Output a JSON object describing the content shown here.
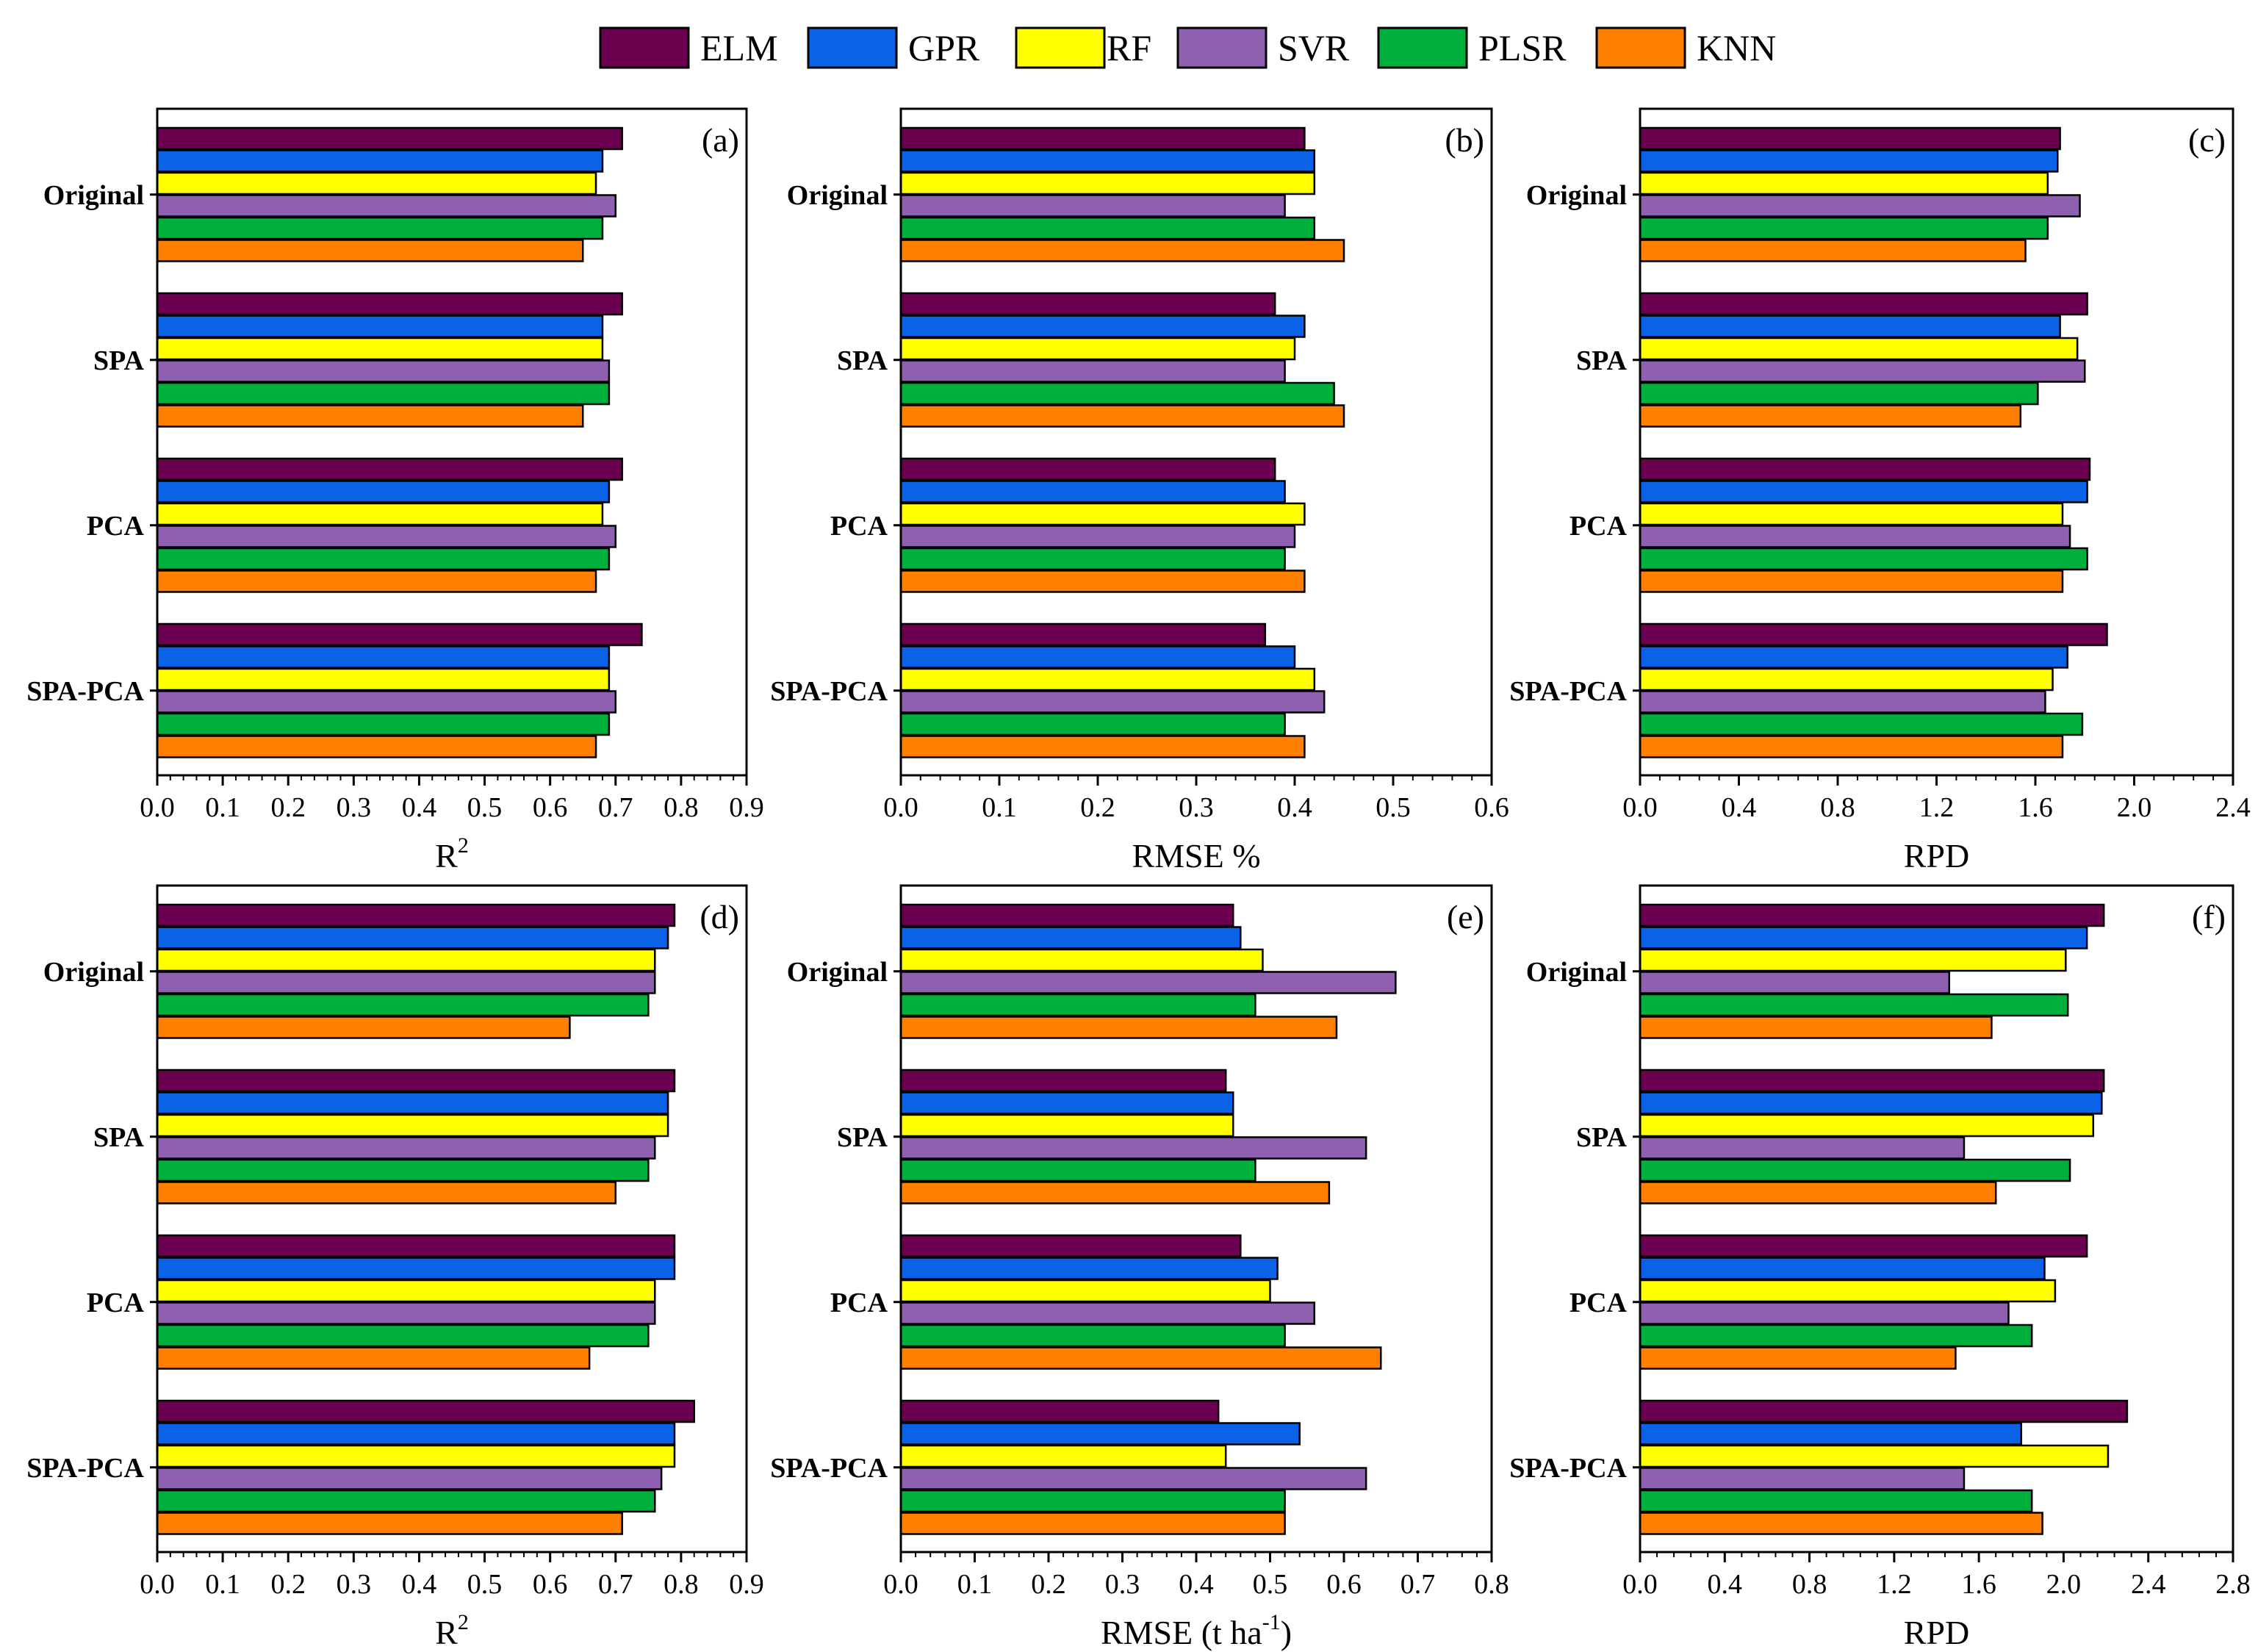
{
  "legend": [
    {
      "name": "ELM",
      "color": "#6B0050"
    },
    {
      "name": "GPR",
      "color": "#0A62E6"
    },
    {
      "name": "RF",
      "color": "#FFFF00"
    },
    {
      "name": "SVR",
      "color": "#9060B0"
    },
    {
      "name": "PLSR",
      "color": "#00B03C"
    },
    {
      "name": "KNN",
      "color": "#FF8000"
    }
  ],
  "chart_data": [
    {
      "type": "bar",
      "orientation": "horizontal",
      "panel": "(a)",
      "categories": [
        "Original",
        "SPA",
        "PCA",
        "SPA-PCA"
      ],
      "xlabel_main": "R",
      "xlabel_sup": "2",
      "xlabel_tail": "",
      "xlim": [
        0,
        0.9
      ],
      "ticks": [
        "0.0",
        "0.1",
        "0.2",
        "0.3",
        "0.4",
        "0.5",
        "0.6",
        "0.7",
        "0.8",
        "0.9"
      ],
      "series": [
        {
          "name": "ELM",
          "values": [
            0.71,
            0.71,
            0.71,
            0.74
          ]
        },
        {
          "name": "GPR",
          "values": [
            0.68,
            0.68,
            0.69,
            0.69
          ]
        },
        {
          "name": "RF",
          "values": [
            0.67,
            0.68,
            0.68,
            0.69
          ]
        },
        {
          "name": "SVR",
          "values": [
            0.7,
            0.69,
            0.7,
            0.7
          ]
        },
        {
          "name": "PLSR",
          "values": [
            0.68,
            0.69,
            0.69,
            0.69
          ]
        },
        {
          "name": "KNN",
          "values": [
            0.65,
            0.65,
            0.67,
            0.67
          ]
        }
      ]
    },
    {
      "type": "bar",
      "orientation": "horizontal",
      "panel": "(b)",
      "categories": [
        "Original",
        "SPA",
        "PCA",
        "SPA-PCA"
      ],
      "xlabel_main": "RMSE %",
      "xlabel_sup": "",
      "xlabel_tail": "",
      "xlim": [
        0,
        0.6
      ],
      "ticks": [
        "0.0",
        "0.1",
        "0.2",
        "0.3",
        "0.4",
        "0.5",
        "0.6"
      ],
      "series": [
        {
          "name": "ELM",
          "values": [
            0.41,
            0.38,
            0.38,
            0.37
          ]
        },
        {
          "name": "GPR",
          "values": [
            0.42,
            0.41,
            0.39,
            0.4
          ]
        },
        {
          "name": "RF",
          "values": [
            0.42,
            0.4,
            0.41,
            0.42
          ]
        },
        {
          "name": "SVR",
          "values": [
            0.39,
            0.39,
            0.4,
            0.43
          ]
        },
        {
          "name": "PLSR",
          "values": [
            0.42,
            0.44,
            0.39,
            0.39
          ]
        },
        {
          "name": "KNN",
          "values": [
            0.45,
            0.45,
            0.41,
            0.41
          ]
        }
      ]
    },
    {
      "type": "bar",
      "orientation": "horizontal",
      "panel": "(c)",
      "categories": [
        "Original",
        "SPA",
        "PCA",
        "SPA-PCA"
      ],
      "xlabel_main": "RPD",
      "xlabel_sup": "",
      "xlabel_tail": "",
      "xlim": [
        0,
        2.4
      ],
      "ticks": [
        "0.0",
        "0.4",
        "0.8",
        "1.2",
        "1.6",
        "2.0",
        "2.4"
      ],
      "series": [
        {
          "name": "ELM",
          "values": [
            1.7,
            1.81,
            1.82,
            1.89
          ]
        },
        {
          "name": "GPR",
          "values": [
            1.69,
            1.7,
            1.81,
            1.73
          ]
        },
        {
          "name": "RF",
          "values": [
            1.65,
            1.77,
            1.71,
            1.67
          ]
        },
        {
          "name": "SVR",
          "values": [
            1.78,
            1.8,
            1.74,
            1.64
          ]
        },
        {
          "name": "PLSR",
          "values": [
            1.65,
            1.61,
            1.81,
            1.79
          ]
        },
        {
          "name": "KNN",
          "values": [
            1.56,
            1.54,
            1.71,
            1.71
          ]
        }
      ]
    },
    {
      "type": "bar",
      "orientation": "horizontal",
      "panel": "(d)",
      "categories": [
        "Original",
        "SPA",
        "PCA",
        "SPA-PCA"
      ],
      "xlabel_main": "R",
      "xlabel_sup": "2",
      "xlabel_tail": "",
      "xlim": [
        0,
        0.9
      ],
      "ticks": [
        "0.0",
        "0.1",
        "0.2",
        "0.3",
        "0.4",
        "0.5",
        "0.6",
        "0.7",
        "0.8",
        "0.9"
      ],
      "series": [
        {
          "name": "ELM",
          "values": [
            0.79,
            0.79,
            0.79,
            0.82
          ]
        },
        {
          "name": "GPR",
          "values": [
            0.78,
            0.78,
            0.79,
            0.79
          ]
        },
        {
          "name": "RF",
          "values": [
            0.76,
            0.78,
            0.76,
            0.79
          ]
        },
        {
          "name": "SVR",
          "values": [
            0.76,
            0.76,
            0.76,
            0.77
          ]
        },
        {
          "name": "PLSR",
          "values": [
            0.75,
            0.75,
            0.75,
            0.76
          ]
        },
        {
          "name": "KNN",
          "values": [
            0.63,
            0.7,
            0.66,
            0.71
          ]
        }
      ]
    },
    {
      "type": "bar",
      "orientation": "horizontal",
      "panel": "(e)",
      "categories": [
        "Original",
        "SPA",
        "PCA",
        "SPA-PCA"
      ],
      "xlabel_main": "RMSE (t ha",
      "xlabel_sup": "-1",
      "xlabel_tail": ")",
      "xlim": [
        0,
        0.8
      ],
      "ticks": [
        "0.0",
        "0.1",
        "0.2",
        "0.3",
        "0.4",
        "0.5",
        "0.6",
        "0.7",
        "0.8"
      ],
      "series": [
        {
          "name": "ELM",
          "values": [
            0.45,
            0.44,
            0.46,
            0.43
          ]
        },
        {
          "name": "GPR",
          "values": [
            0.46,
            0.45,
            0.51,
            0.54
          ]
        },
        {
          "name": "RF",
          "values": [
            0.49,
            0.45,
            0.5,
            0.44
          ]
        },
        {
          "name": "SVR",
          "values": [
            0.67,
            0.63,
            0.56,
            0.63
          ]
        },
        {
          "name": "PLSR",
          "values": [
            0.48,
            0.48,
            0.52,
            0.52
          ]
        },
        {
          "name": "KNN",
          "values": [
            0.59,
            0.58,
            0.65,
            0.52
          ]
        }
      ]
    },
    {
      "type": "bar",
      "orientation": "horizontal",
      "panel": "(f)",
      "categories": [
        "Original",
        "SPA",
        "PCA",
        "SPA-PCA"
      ],
      "xlabel_main": "RPD",
      "xlabel_sup": "",
      "xlabel_tail": "",
      "xlim": [
        0,
        2.8
      ],
      "ticks": [
        "0.0",
        "0.4",
        "0.8",
        "1.2",
        "1.6",
        "2.0",
        "2.4",
        "2.8"
      ],
      "series": [
        {
          "name": "ELM",
          "values": [
            2.19,
            2.19,
            2.11,
            2.3
          ]
        },
        {
          "name": "GPR",
          "values": [
            2.11,
            2.18,
            1.91,
            1.8
          ]
        },
        {
          "name": "RF",
          "values": [
            2.01,
            2.14,
            1.96,
            2.21
          ]
        },
        {
          "name": "SVR",
          "values": [
            1.46,
            1.53,
            1.74,
            1.53
          ]
        },
        {
          "name": "PLSR",
          "values": [
            2.02,
            2.03,
            1.85,
            1.85
          ]
        },
        {
          "name": "KNN",
          "values": [
            1.66,
            1.68,
            1.49,
            1.9
          ]
        }
      ]
    }
  ]
}
